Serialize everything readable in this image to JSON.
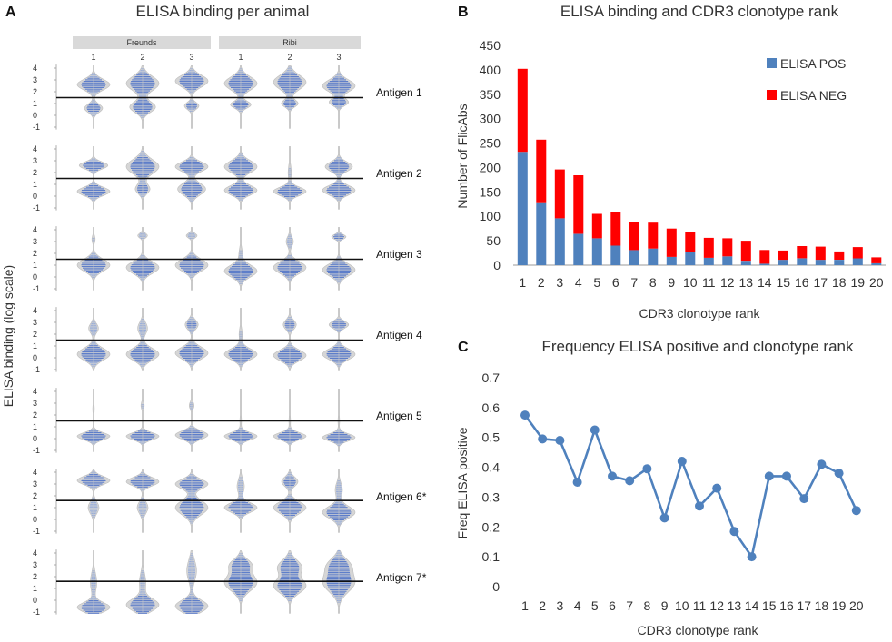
{
  "panels": {
    "a": {
      "letter": "A",
      "title": "ELISA binding per animal",
      "ylabel": "ELISA binding (log scale)",
      "groups": [
        {
          "name": "Freunds",
          "animals": [
            "1",
            "2",
            "3"
          ]
        },
        {
          "name": "Ribi",
          "animals": [
            "1",
            "2",
            "3"
          ]
        }
      ],
      "tick_labels": [
        "4",
        "3",
        "2",
        "1",
        "0",
        "-1"
      ],
      "antigens": [
        "Antigen 1",
        "Antigen 2",
        "Antigen 3",
        "Antigen 4",
        "Antigen 5",
        "Antigen 6*",
        "Antigen 7*"
      ]
    },
    "b": {
      "letter": "B"
    },
    "c": {
      "letter": "C"
    }
  },
  "chart_data": [
    {
      "type": "violin",
      "title": "ELISA binding per animal",
      "ylabel": "ELISA binding (log scale)",
      "ylim": [
        -1,
        4
      ],
      "threshold": [
        1.5,
        1.5,
        1.5,
        1.5,
        1.5,
        1.6,
        1.6
      ],
      "groups": [
        "Freunds",
        "Ribi"
      ],
      "animals": [
        "1",
        "2",
        "3"
      ],
      "antigens": [
        "Antigen 1",
        "Antigen 2",
        "Antigen 3",
        "Antigen 4",
        "Antigen 5",
        "Antigen 6*",
        "Antigen 7*"
      ],
      "modes": [
        [
          [
            [
              2.6,
              0.45,
              0.9
            ],
            [
              0.6,
              0.35,
              0.5
            ]
          ],
          [
            [
              2.7,
              0.6,
              0.7
            ],
            [
              0.7,
              0.45,
              0.55
            ]
          ],
          [
            [
              2.9,
              0.5,
              0.9
            ],
            [
              0.8,
              0.3,
              0.4
            ]
          ],
          [
            [
              2.7,
              0.55,
              0.8
            ],
            [
              0.9,
              0.3,
              0.5
            ]
          ],
          [
            [
              2.8,
              0.6,
              0.8
            ],
            [
              1.0,
              0.3,
              0.4
            ]
          ],
          [
            [
              2.5,
              0.5,
              0.7
            ],
            [
              1.1,
              0.3,
              0.4
            ]
          ]
        ],
        [
          [
            [
              2.6,
              0.3,
              0.7
            ],
            [
              0.4,
              0.35,
              0.8
            ]
          ],
          [
            [
              2.5,
              0.6,
              0.9
            ],
            [
              0.6,
              0.4,
              0.4
            ]
          ],
          [
            [
              2.5,
              0.4,
              0.7
            ],
            [
              0.6,
              0.5,
              0.6
            ]
          ],
          [
            [
              2.5,
              0.5,
              0.6
            ],
            [
              0.5,
              0.4,
              0.6
            ]
          ],
          [
            [
              0.4,
              0.35,
              1.0
            ],
            [
              2.0,
              0.6,
              0.1
            ]
          ],
          [
            [
              2.5,
              0.4,
              0.5
            ],
            [
              0.5,
              0.4,
              0.6
            ]
          ]
        ],
        [
          [
            [
              1.0,
              0.5,
              1.0
            ],
            [
              3.2,
              0.3,
              0.1
            ]
          ],
          [
            [
              0.8,
              0.5,
              1.0
            ],
            [
              3.5,
              0.2,
              0.3
            ]
          ],
          [
            [
              1.0,
              0.5,
              0.9
            ],
            [
              3.5,
              0.2,
              0.3
            ]
          ],
          [
            [
              0.5,
              0.5,
              1.0
            ],
            [
              2.0,
              0.5,
              0.1
            ]
          ],
          [
            [
              0.8,
              0.5,
              0.9
            ],
            [
              3.0,
              0.4,
              0.2
            ]
          ],
          [
            [
              0.6,
              0.5,
              0.9
            ],
            [
              3.4,
              0.2,
              0.4
            ]
          ]
        ],
        [
          [
            [
              0.3,
              0.5,
              1.0
            ],
            [
              2.5,
              0.4,
              0.3
            ]
          ],
          [
            [
              0.3,
              0.5,
              1.0
            ],
            [
              2.5,
              0.5,
              0.3
            ]
          ],
          [
            [
              0.4,
              0.5,
              1.0
            ],
            [
              2.8,
              0.4,
              0.4
            ]
          ],
          [
            [
              0.3,
              0.45,
              1.0
            ],
            [
              2.0,
              0.5,
              0.1
            ]
          ],
          [
            [
              0.2,
              0.45,
              1.0
            ],
            [
              2.8,
              0.4,
              0.4
            ]
          ],
          [
            [
              0.3,
              0.45,
              1.0
            ],
            [
              2.8,
              0.3,
              0.6
            ]
          ]
        ],
        [
          [
            [
              0.2,
              0.3,
              1.0
            ],
            [
              2.5,
              0.4,
              0.05
            ]
          ],
          [
            [
              0.2,
              0.3,
              1.0
            ],
            [
              2.8,
              0.3,
              0.1
            ]
          ],
          [
            [
              0.3,
              0.35,
              1.0
            ],
            [
              2.8,
              0.3,
              0.15
            ]
          ],
          [
            [
              0.2,
              0.3,
              1.0
            ],
            [
              1.5,
              0.5,
              0.05
            ]
          ],
          [
            [
              0.2,
              0.3,
              1.0
            ],
            [
              1.5,
              0.5,
              0.05
            ]
          ],
          [
            [
              0.1,
              0.3,
              1.0
            ],
            [
              1.5,
              0.5,
              0.05
            ]
          ]
        ],
        [
          [
            [
              3.3,
              0.35,
              0.9
            ],
            [
              1.0,
              0.5,
              0.3
            ]
          ],
          [
            [
              3.2,
              0.35,
              0.9
            ],
            [
              1.0,
              0.5,
              0.3
            ]
          ],
          [
            [
              3.0,
              0.4,
              0.6
            ],
            [
              1.0,
              0.6,
              0.6
            ]
          ],
          [
            [
              1.0,
              0.4,
              0.9
            ],
            [
              2.8,
              0.6,
              0.2
            ]
          ],
          [
            [
              1.0,
              0.5,
              0.6
            ],
            [
              3.2,
              0.4,
              0.3
            ]
          ],
          [
            [
              0.6,
              0.5,
              0.9
            ],
            [
              2.5,
              0.6,
              0.2
            ]
          ]
        ],
        [
          [
            [
              -0.6,
              0.4,
              1.0
            ],
            [
              1.5,
              0.8,
              0.2
            ]
          ],
          [
            [
              -0.4,
              0.5,
              1.0
            ],
            [
              1.5,
              0.8,
              0.2
            ]
          ],
          [
            [
              -0.5,
              0.5,
              1.0
            ],
            [
              2.5,
              0.9,
              0.3
            ]
          ],
          [
            [
              1.5,
              0.7,
              0.8
            ],
            [
              3.0,
              0.5,
              0.5
            ]
          ],
          [
            [
              1.2,
              0.6,
              0.8
            ],
            [
              2.8,
              0.6,
              0.6
            ]
          ],
          [
            [
              1.5,
              0.8,
              0.8
            ],
            [
              3.0,
              0.6,
              0.5
            ]
          ]
        ]
      ]
    },
    {
      "type": "bar",
      "stacked": true,
      "title": "ELISA binding and CDR3 clonotype rank",
      "xlabel": "CDR3 clonotype rank",
      "ylabel": "Number of FlicAbs",
      "ylim": [
        0,
        450
      ],
      "yticks": [
        0,
        50,
        100,
        150,
        200,
        250,
        300,
        350,
        400,
        450
      ],
      "categories": [
        "1",
        "2",
        "3",
        "4",
        "5",
        "6",
        "7",
        "8",
        "9",
        "10",
        "11",
        "12",
        "13",
        "14",
        "15",
        "16",
        "17",
        "18",
        "19",
        "20"
      ],
      "legend_position": "top-right",
      "series": [
        {
          "name": "ELISA POS",
          "color": "#4f81bd",
          "values": [
            232,
            127,
            96,
            64,
            55,
            40,
            31,
            34,
            17,
            28,
            15,
            18,
            9,
            3,
            11,
            14,
            11,
            11,
            14,
            4
          ]
        },
        {
          "name": "ELISA NEG",
          "color": "#ff0000",
          "values": [
            170,
            130,
            100,
            120,
            50,
            69,
            57,
            53,
            58,
            39,
            41,
            37,
            41,
            28,
            19,
            25,
            27,
            17,
            23,
            12
          ]
        }
      ]
    },
    {
      "type": "line",
      "title": "Frequency ELISA positive and clonotype rank",
      "xlabel": "CDR3 clonotype rank",
      "ylabel": "Freq ELISA positive",
      "ylim": [
        0,
        0.7
      ],
      "yticks": [
        "0",
        "0.1",
        "0.2",
        "0.3",
        "0.4",
        "0.5",
        "0.6",
        "0.7"
      ],
      "color": "#4f81bd",
      "x": [
        "1",
        "2",
        "3",
        "4",
        "5",
        "6",
        "7",
        "8",
        "9",
        "10",
        "11",
        "12",
        "13",
        "14",
        "15",
        "16",
        "17",
        "18",
        "19",
        "20"
      ],
      "values": [
        0.575,
        0.495,
        0.49,
        0.35,
        0.525,
        0.37,
        0.355,
        0.395,
        0.23,
        0.42,
        0.27,
        0.33,
        0.185,
        0.1,
        0.37,
        0.37,
        0.295,
        0.41,
        0.38,
        0.255
      ]
    }
  ]
}
